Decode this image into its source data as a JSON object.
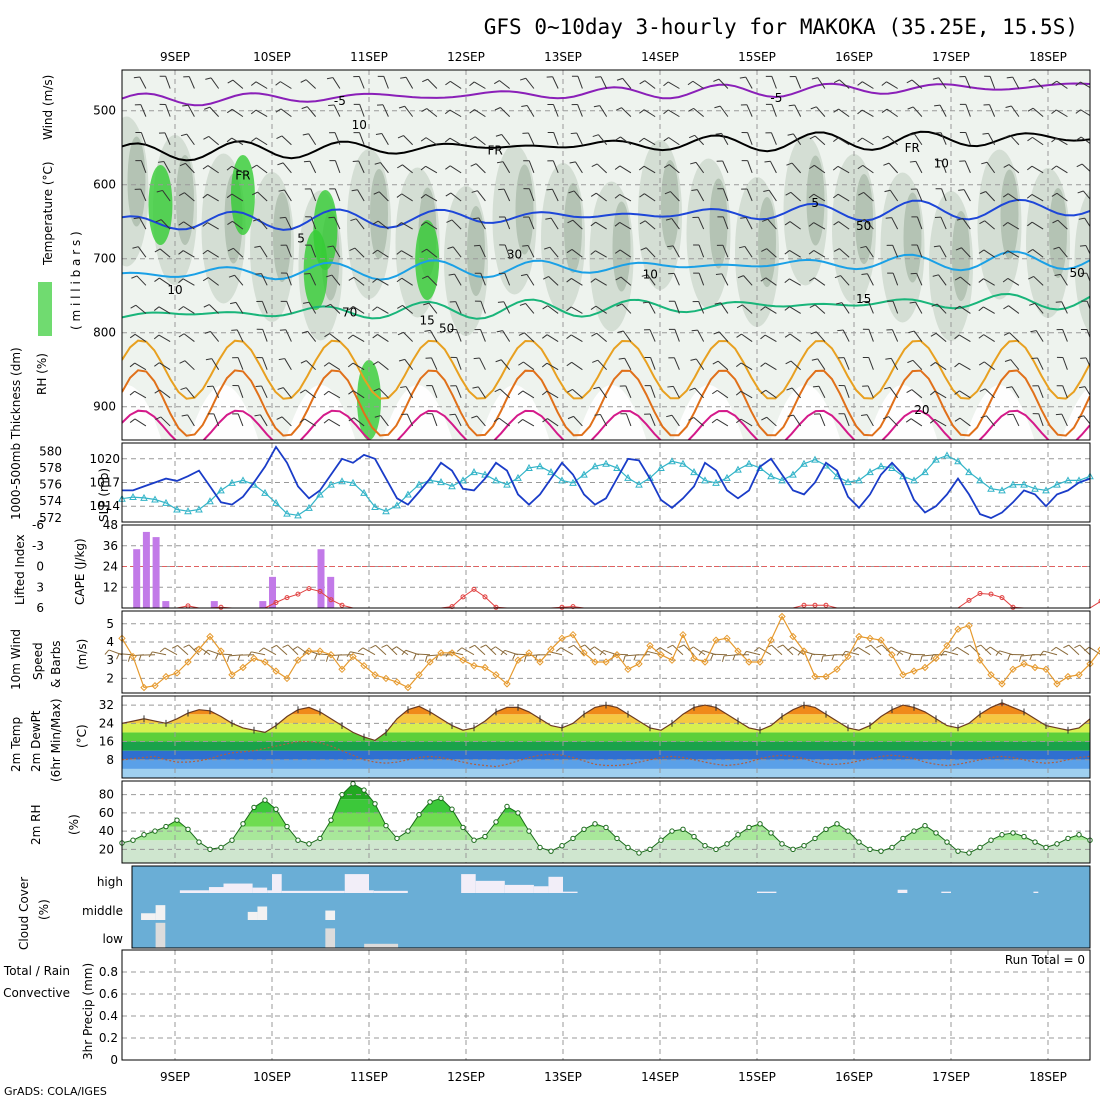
{
  "title": "GFS 0~10day 3-hourly for MAKOKA (35.25E, 15.5S)",
  "credit": "GrADS: COLA/IGES",
  "date_labels": [
    "9SEP",
    "10SEP",
    "11SEP",
    "12SEP",
    "13SEP",
    "14SEP",
    "15SEP",
    "16SEP",
    "17SEP",
    "18SEP"
  ],
  "colors": {
    "purple": "#8a1fb8",
    "black": "#000000",
    "blue": "#1d46d8",
    "cyan": "#1aa0e6",
    "teal": "#19b57a",
    "orange": "#e8a020",
    "darkorange": "#e0701a",
    "magenta": "#d41a8a",
    "grey_shade": "#c9d4c9",
    "green_shade": "#33cc33",
    "cloud_blue": "#6aaed6",
    "slp": "#1a3cc8",
    "thick": "#33b4c8",
    "cape": "#c27ae8",
    "li": "#e04040",
    "wind": "#e69a2e",
    "barb": "#8a6a3a",
    "rh": "#22a822",
    "dew": "#b06040"
  },
  "chart_data": [
    {
      "panel": "upper_air",
      "type": "heatmap",
      "labels": {
        "rh": "RH (%)",
        "temp": "Temperature (°C)",
        "wind": "Wind (m/s)",
        "level": "( m i l l i b a r s )"
      },
      "y_ticks": [
        500,
        600,
        700,
        800,
        900
      ],
      "ylim": [
        445,
        945
      ],
      "contour_labels": [
        {
          "text": "-5",
          "day": 1.7,
          "p": 492,
          "c": "purple"
        },
        {
          "text": "-5",
          "day": 6.2,
          "p": 488,
          "c": "purple"
        },
        {
          "text": "FR",
          "day": 0.7,
          "p": 593,
          "c": "black"
        },
        {
          "text": "FR",
          "day": 3.3,
          "p": 559,
          "c": "black"
        },
        {
          "text": "FR",
          "day": 7.6,
          "p": 556,
          "c": "black"
        },
        {
          "text": "5",
          "day": 1.3,
          "p": 678,
          "c": "blue"
        },
        {
          "text": "5",
          "day": 6.6,
          "p": 630,
          "c": "blue"
        },
        {
          "text": "10",
          "day": 0.0,
          "p": 748,
          "c": "cyan"
        },
        {
          "text": "10",
          "day": 4.9,
          "p": 727,
          "c": "cyan"
        },
        {
          "text": "15",
          "day": 2.6,
          "p": 789,
          "c": "teal"
        },
        {
          "text": "15",
          "day": 7.1,
          "p": 760,
          "c": "teal"
        },
        {
          "text": "20",
          "day": 7.7,
          "p": 910,
          "c": "orange"
        },
        {
          "text": "10",
          "day": 1.9,
          "p": 525,
          "c": "grey"
        },
        {
          "text": "10",
          "day": 7.9,
          "p": 577,
          "c": "grey"
        },
        {
          "text": "50",
          "day": 7.1,
          "p": 661,
          "c": "grey"
        },
        {
          "text": "50",
          "day": 9.3,
          "p": 725,
          "c": "grey"
        },
        {
          "text": "70",
          "day": 1.8,
          "p": 778,
          "c": "grey"
        },
        {
          "text": "50",
          "day": 2.8,
          "p": 800,
          "c": "grey"
        },
        {
          "text": "30",
          "day": 3.5,
          "p": 700,
          "c": "grey"
        }
      ]
    },
    {
      "panel": "slp_thickness",
      "type": "line",
      "labels": {
        "thick": "1000-500mb Thickness (dm)",
        "slp": "SLP (mb)"
      },
      "left_ticks": [
        572,
        574,
        576,
        578,
        580
      ],
      "right_ticks": [
        1014,
        1017,
        1020
      ],
      "series": [
        {
          "key": "SLP (mb)",
          "axis": "right",
          "ylim": [
            1012,
            1022
          ],
          "values": [
            1016,
            1016,
            1016.5,
            1017,
            1017.5,
            1017.2,
            1017.8,
            1018.5,
            1016.5,
            1014.5,
            1014.2,
            1015.2,
            1017,
            1019,
            1021.5,
            1019.5,
            1016.5,
            1015,
            1016,
            1018,
            1020,
            1019.5,
            1020.5,
            1020,
            1017.5,
            1015,
            1014.2,
            1015.8,
            1017.5,
            1019.5,
            1018.5,
            1016.2,
            1016,
            1017.5,
            1019.5,
            1018.5,
            1015.5,
            1014.2,
            1015.5,
            1017.5,
            1019.5,
            1018,
            1015.5,
            1014.2,
            1015,
            1017.5,
            1020,
            1019.8,
            1017.5,
            1014.8,
            1013.8,
            1015,
            1016.5,
            1019.5,
            1018.5,
            1016,
            1015,
            1016,
            1019,
            1020,
            1018,
            1016,
            1015.5,
            1017,
            1019.5,
            1018.5,
            1015.2,
            1013.8,
            1015.5,
            1018,
            1019.5,
            1018,
            1014.8,
            1013.2,
            1014,
            1015.5,
            1017.5,
            1015.5,
            1013,
            1012.5,
            1013.2,
            1014.5,
            1016,
            1015.5,
            1014,
            1015.5,
            1016,
            1017,
            1017.5
          ]
        },
        {
          "key": "Thickness (dm)",
          "axis": "left",
          "ylim": [
            571.5,
            581
          ],
          "values": [
            574.3,
            574.5,
            574.4,
            574.2,
            573.8,
            573,
            572.8,
            573,
            574,
            575.3,
            576.2,
            576.5,
            576,
            575,
            573.8,
            572.5,
            572.3,
            573.2,
            574.8,
            576,
            576.4,
            576.2,
            575,
            573.3,
            572.8,
            573.5,
            574.8,
            576,
            576.5,
            576.3,
            575.8,
            576.5,
            577.5,
            577.2,
            576.5,
            576,
            576.8,
            578,
            578.2,
            577.5,
            576.5,
            576.2,
            577.2,
            578.2,
            578.5,
            578,
            576.8,
            576,
            576.8,
            578,
            578.8,
            578.5,
            577.5,
            576.5,
            576.2,
            576.8,
            577.8,
            578.5,
            578,
            577,
            576.5,
            577.2,
            578.5,
            579,
            578.3,
            577,
            576.3,
            576.5,
            577.5,
            578.2,
            578,
            577,
            576.5,
            577.5,
            579,
            579.5,
            578.8,
            577.5,
            576.5,
            575.5,
            575.3,
            576,
            576,
            575.5,
            575.3,
            576,
            576.5,
            576.5,
            577
          ]
        }
      ]
    },
    {
      "panel": "cape_li",
      "type": "bar",
      "labels": {
        "li": "Lifted Index",
        "cape": "CAPE (J/kg)"
      },
      "left_ticks": [
        "6",
        "3",
        "0",
        "-3",
        "-6"
      ],
      "right_ticks": [
        12,
        24,
        36,
        48
      ],
      "cape_ylim": [
        0,
        48
      ],
      "li_ylim": [
        6,
        -6
      ],
      "cape_bars": [
        {
          "day": -0.4,
          "v": 34
        },
        {
          "day": -0.3,
          "v": 44
        },
        {
          "day": -0.2,
          "v": 41
        },
        {
          "day": -0.1,
          "v": 4
        },
        {
          "day": 0.4,
          "v": 4
        },
        {
          "day": 0.9,
          "v": 4
        },
        {
          "day": 1.0,
          "v": 18
        },
        {
          "day": 1.5,
          "v": 34
        },
        {
          "day": 1.6,
          "v": 18
        }
      ],
      "li_values": [
        6,
        6,
        6,
        6,
        6,
        6,
        5.7,
        6,
        6,
        5.9,
        6,
        6,
        6,
        6,
        5.2,
        4.5,
        4,
        3.2,
        3.6,
        4.8,
        5.6,
        6,
        6,
        6,
        6,
        6,
        6,
        6,
        6,
        6,
        5.8,
        4.4,
        3.3,
        4.4,
        5.9,
        6,
        6,
        6,
        6,
        6,
        5.9,
        5.8,
        6,
        6,
        6,
        6,
        6,
        6,
        6,
        6,
        6,
        6,
        6,
        6,
        6,
        6,
        6,
        6,
        6,
        6,
        6,
        6,
        5.6,
        5.6,
        5.6,
        6,
        6,
        6,
        6,
        6,
        6,
        6,
        6,
        6,
        6,
        6,
        6,
        4.9,
        3.9,
        4,
        4.5,
        5.9,
        6,
        6,
        6,
        6,
        6,
        6,
        6,
        5
      ]
    },
    {
      "panel": "wind10m",
      "type": "line",
      "labels": {
        "t1": "10m Wind",
        "t2": "Speed",
        "t3": "& Barbs",
        "unit": "(m/s)"
      },
      "y_ticks": [
        2,
        3,
        4,
        5
      ],
      "ylim": [
        1.2,
        5.7
      ],
      "values": [
        4.2,
        3.2,
        1.5,
        1.6,
        2.1,
        2.3,
        2.9,
        3.6,
        4.3,
        3.5,
        2.2,
        2.6,
        3.1,
        2.9,
        2.4,
        2.0,
        3.0,
        3.5,
        3.5,
        3.3,
        2.5,
        3.2,
        2.7,
        2.2,
        2.0,
        1.8,
        1.5,
        2.2,
        2.9,
        3.4,
        3.4,
        3.0,
        2.7,
        2.6,
        2.2,
        1.7,
        3.0,
        3.4,
        2.9,
        3.6,
        4.2,
        4.4,
        3.4,
        2.9,
        2.9,
        3.3,
        2.5,
        2.8,
        3.8,
        3.3,
        3.0,
        4.4,
        3.1,
        2.9,
        4.1,
        4.2,
        3.5,
        2.9,
        2.9,
        4.1,
        5.4,
        4.3,
        3.5,
        2.1,
        2.1,
        2.5,
        3.2,
        4.3,
        4.2,
        4.1,
        3.3,
        2.2,
        2.4,
        2.6,
        3.1,
        3.8,
        4.7,
        4.9,
        3.0,
        2.2,
        1.7,
        2.5,
        2.8,
        2.6,
        2.5,
        1.7,
        2.1,
        2.2,
        2.8,
        3.6
      ]
    },
    {
      "panel": "temp2m",
      "type": "area",
      "labels": {
        "t1": "2m Temp",
        "t2": "2m DewPt",
        "t3": "(6hr Min/Max)",
        "unit": "(°C)"
      },
      "y_ticks": [
        8,
        16,
        24,
        32
      ],
      "ylim": [
        0,
        36
      ],
      "temp": [
        24,
        25,
        26,
        25,
        24,
        26,
        28.5,
        30,
        29.5,
        27,
        24,
        22,
        21,
        20,
        23,
        27,
        30,
        31,
        29,
        26,
        23,
        20,
        18,
        16.5,
        20,
        26,
        30,
        31.5,
        29,
        26,
        23,
        21,
        22,
        25,
        29,
        31,
        31,
        29,
        26,
        23,
        22,
        24,
        28,
        31,
        32,
        31,
        28,
        25,
        22,
        21,
        24,
        28,
        31,
        32,
        31,
        28,
        25,
        22,
        21,
        23,
        27,
        30,
        32,
        31,
        28,
        25,
        22,
        21,
        23,
        27,
        30,
        32,
        31,
        29,
        26,
        23,
        22,
        24,
        28,
        31,
        33,
        31,
        29,
        26,
        23,
        22,
        21,
        22,
        26
      ],
      "dew": [
        8,
        8.5,
        9,
        9.5,
        8,
        7,
        7,
        7.5,
        8.5,
        10,
        11,
        11.5,
        12,
        13,
        14,
        15,
        16,
        16,
        15.5,
        14,
        12,
        10,
        8,
        7,
        6.5,
        7,
        8,
        9,
        9.5,
        9,
        8,
        7,
        6,
        5.5,
        5,
        6,
        7.5,
        9,
        10,
        10.5,
        10,
        9,
        7.5,
        6,
        5.5,
        5.5,
        6,
        7,
        8,
        9,
        9.5,
        9,
        8,
        7,
        6,
        5.5,
        6,
        7,
        8.5,
        9.5,
        10,
        9.5,
        8.5,
        7,
        6,
        6,
        6.5,
        7.5,
        8.5,
        9.5,
        10,
        9.5,
        8.5,
        7,
        6,
        5.5,
        6,
        7,
        8,
        9,
        9.5,
        9,
        8,
        7,
        6.5,
        7,
        8,
        9,
        9.5
      ]
    },
    {
      "panel": "rh2m",
      "type": "area",
      "labels": {
        "t1": "2m RH",
        "unit": "(%)"
      },
      "y_ticks": [
        20,
        40,
        60,
        80
      ],
      "ylim": [
        5,
        95
      ],
      "values": [
        27,
        30,
        36,
        40,
        45,
        52,
        42,
        28,
        20,
        22,
        30,
        48,
        66,
        74,
        64,
        45,
        30,
        26,
        32,
        52,
        80,
        92,
        85,
        70,
        46,
        32,
        40,
        58,
        72,
        76,
        64,
        44,
        30,
        34,
        50,
        67,
        60,
        40,
        22,
        18,
        24,
        32,
        42,
        48,
        44,
        32,
        22,
        16,
        20,
        30,
        40,
        42,
        34,
        24,
        20,
        26,
        36,
        44,
        48,
        38,
        26,
        20,
        24,
        32,
        42,
        48,
        40,
        28,
        20,
        18,
        22,
        32,
        40,
        46,
        38,
        28,
        18,
        16,
        22,
        30,
        36,
        38,
        34,
        28,
        22,
        26,
        32,
        36,
        30
      ]
    },
    {
      "panel": "cloud",
      "type": "area",
      "labels": {
        "t1": "Cloud Cover",
        "unit": "(%)",
        "high": "high",
        "middle": "middle",
        "low": "low"
      },
      "high_blocks": [
        {
          "d0": 0.05,
          "d1": 0.35,
          "v": 0.1
        },
        {
          "d0": 0.35,
          "d1": 0.5,
          "v": 0.22
        },
        {
          "d0": 0.5,
          "d1": 0.8,
          "v": 0.35
        },
        {
          "d0": 0.8,
          "d1": 0.95,
          "v": 0.2
        },
        {
          "d0": 0.95,
          "d1": 1.0,
          "v": 0.1
        },
        {
          "d0": 1.0,
          "d1": 1.1,
          "v": 0.7
        },
        {
          "d0": 1.1,
          "d1": 1.75,
          "v": 0.08
        },
        {
          "d0": 1.75,
          "d1": 2.0,
          "v": 0.7
        },
        {
          "d0": 2.0,
          "d1": 2.05,
          "v": 0.1
        },
        {
          "d0": 2.05,
          "d1": 2.4,
          "v": 0.08
        },
        {
          "d0": 2.95,
          "d1": 3.1,
          "v": 0.7
        },
        {
          "d0": 3.1,
          "d1": 3.4,
          "v": 0.45
        },
        {
          "d0": 3.4,
          "d1": 3.7,
          "v": 0.3
        },
        {
          "d0": 3.7,
          "d1": 3.85,
          "v": 0.25
        },
        {
          "d0": 3.85,
          "d1": 4.0,
          "v": 0.6
        },
        {
          "d0": 4.0,
          "d1": 4.15,
          "v": 0.05
        },
        {
          "d0": 7.45,
          "d1": 7.55,
          "v": 0.12
        },
        {
          "d0": 6.0,
          "d1": 6.2,
          "v": 0.05
        },
        {
          "d0": 7.9,
          "d1": 8.0,
          "v": 0.05
        },
        {
          "d0": 8.85,
          "d1": 8.9,
          "v": 0.05
        }
      ],
      "mid_blocks": [
        {
          "d0": -0.35,
          "d1": -0.2,
          "v": 0.25
        },
        {
          "d0": -0.2,
          "d1": -0.1,
          "v": 0.55
        },
        {
          "d0": 0.75,
          "d1": 0.85,
          "v": 0.3
        },
        {
          "d0": 0.85,
          "d1": 0.95,
          "v": 0.5
        },
        {
          "d0": 1.55,
          "d1": 1.65,
          "v": 0.35
        }
      ],
      "low_blocks": [
        {
          "d0": -0.2,
          "d1": -0.1,
          "v": 0.9
        },
        {
          "d0": 1.55,
          "d1": 1.65,
          "v": 0.7
        },
        {
          "d0": 1.95,
          "d1": 2.3,
          "v": 0.15
        }
      ]
    },
    {
      "panel": "precip",
      "type": "bar",
      "labels": {
        "t1": "Total / Rain",
        "t2": "Convective",
        "unit": "3hr Precip (mm)",
        "run_total": "Run Total = 0"
      },
      "y_ticks": [
        "0",
        "0.2",
        "0.4",
        "0.6",
        "0.8"
      ],
      "ylim": [
        0,
        1.0
      ],
      "values": []
    }
  ]
}
